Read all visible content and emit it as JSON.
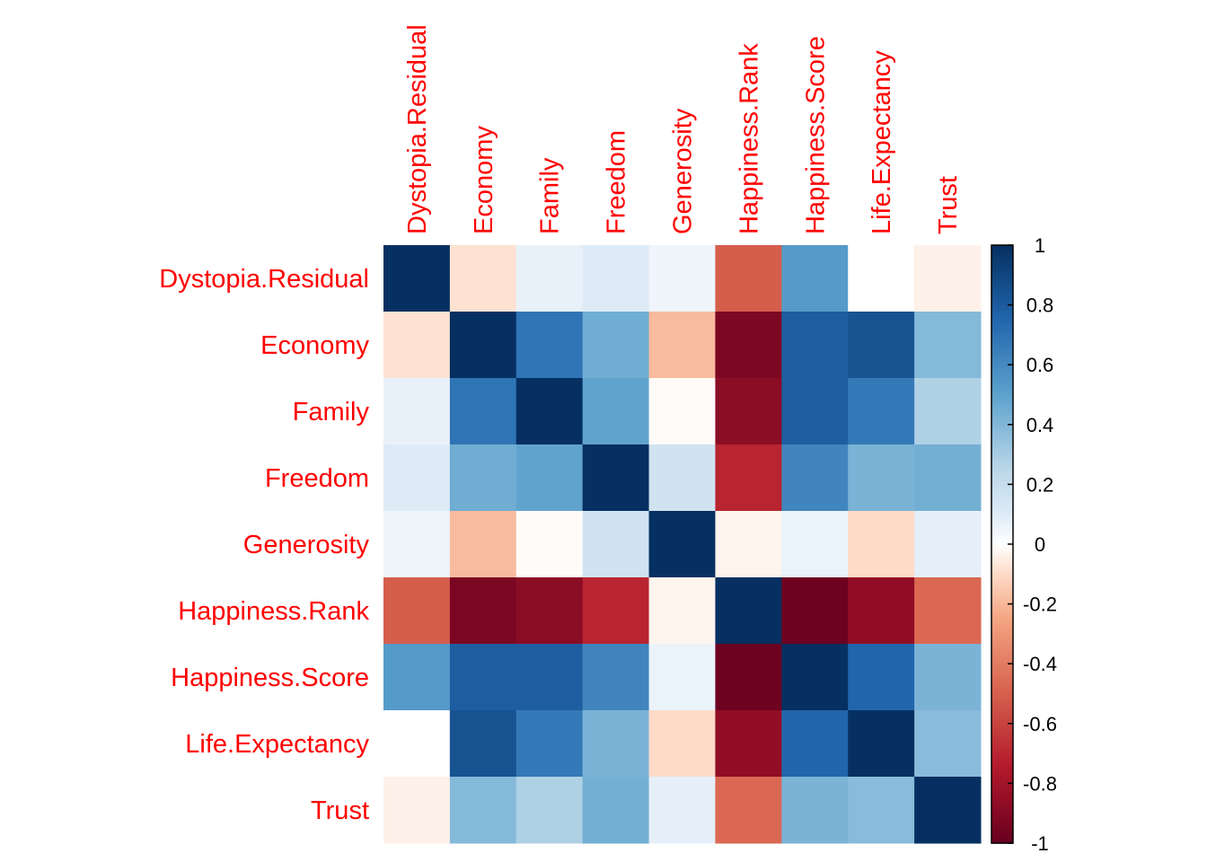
{
  "chart_data": {
    "type": "heatmap",
    "title": "",
    "variables": [
      "Dystopia.Residual",
      "Economy",
      "Family",
      "Freedom",
      "Generosity",
      "Happiness.Rank",
      "Happiness.Score",
      "Life.Expectancy",
      "Trust"
    ],
    "matrix": [
      [
        1.0,
        -0.08,
        0.07,
        0.1,
        0.05,
        -0.51,
        0.53,
        0.0,
        -0.04
      ],
      [
        -0.08,
        1.0,
        0.69,
        0.45,
        -0.19,
        -0.93,
        0.79,
        0.84,
        0.39
      ],
      [
        0.07,
        0.69,
        1.0,
        0.49,
        -0.01,
        -0.88,
        0.79,
        0.67,
        0.28
      ],
      [
        0.1,
        0.45,
        0.49,
        1.0,
        0.16,
        -0.71,
        0.62,
        0.42,
        0.44
      ],
      [
        0.05,
        -0.19,
        -0.01,
        0.16,
        1.0,
        -0.03,
        0.06,
        -0.1,
        0.08
      ],
      [
        -0.51,
        -0.93,
        -0.88,
        -0.71,
        -0.03,
        1.0,
        -0.98,
        -0.86,
        -0.47
      ],
      [
        0.53,
        0.79,
        0.79,
        0.62,
        0.06,
        -0.98,
        1.0,
        0.75,
        0.42
      ],
      [
        0.0,
        0.84,
        0.67,
        0.42,
        -0.1,
        -0.86,
        0.75,
        1.0,
        0.38
      ],
      [
        -0.04,
        0.39,
        0.28,
        0.44,
        0.08,
        -0.47,
        0.42,
        0.38,
        1.0
      ]
    ],
    "colorbar": {
      "min": -1,
      "max": 1,
      "ticks": [
        "1",
        "0.8",
        "0.6",
        "0.4",
        "0.2",
        "0",
        "-0.2",
        "-0.4",
        "-0.6",
        "-0.8",
        "-1"
      ]
    },
    "colors": {
      "negative_end": "#67001f",
      "zero": "#ffffff",
      "positive_end": "#053061",
      "label": "#ff0000"
    }
  }
}
